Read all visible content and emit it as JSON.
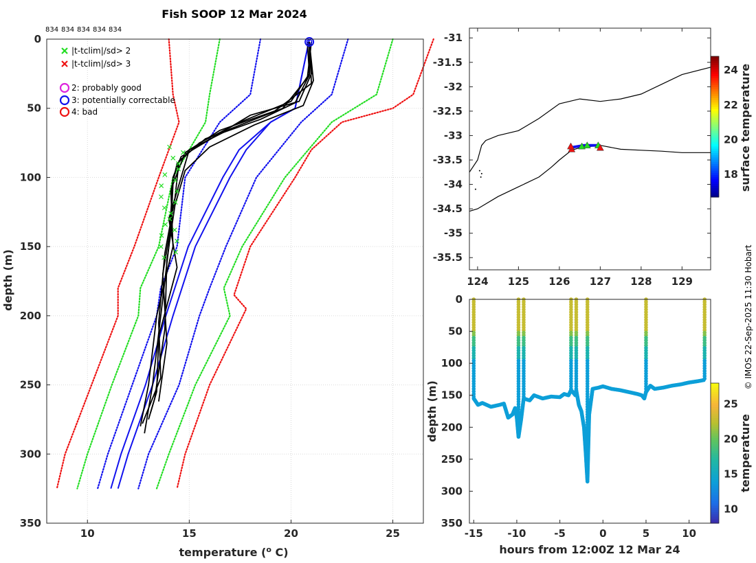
{
  "chart_data": [
    {
      "type": "line",
      "title": "Fish SOOP 12 Mar 2024",
      "xlabel": "temperature (",
      "xlabel_sup": "o",
      "xlabel_suffix": " C)",
      "ylabel": "depth (m)",
      "xlim": [
        8,
        26.5
      ],
      "ylim": [
        350,
        0
      ],
      "xticks": [
        "10",
        "15",
        "20",
        "25"
      ],
      "yticks": [
        "0",
        "50",
        "100",
        "150",
        "200",
        "250",
        "300",
        "350"
      ],
      "count_labels": [
        "834",
        "834",
        "834",
        "834",
        "834"
      ],
      "legend": [
        {
          "marker": "x",
          "color": "#22dd22",
          "label": "|t-tclim|/sd> 2"
        },
        {
          "marker": "x",
          "color": "#ee1111",
          "label": "|t-tclim|/sd> 3"
        },
        {
          "marker": "o",
          "color": "#dd22dd",
          "label": "2: probably good"
        },
        {
          "marker": "o",
          "color": "#1111ee",
          "label": "3: potentially correctable"
        },
        {
          "marker": "o",
          "color": "#ee1111",
          "label": "4: bad"
        }
      ],
      "climatology": [
        {
          "name": "clim-3sd-low",
          "color": "#ee1111",
          "depth": [
            0,
            40,
            60,
            100,
            150,
            180,
            200,
            250,
            300,
            325
          ],
          "temp": [
            14.0,
            14.2,
            14.5,
            13.5,
            12.3,
            11.5,
            11.5,
            10.2,
            8.9,
            8.5
          ]
        },
        {
          "name": "clim-2sd-low",
          "color": "#22dd22",
          "depth": [
            0,
            40,
            60,
            100,
            150,
            180,
            200,
            250,
            300,
            325
          ],
          "temp": [
            16.5,
            16.0,
            15.8,
            14.2,
            13.5,
            12.6,
            12.5,
            11.2,
            10.0,
            9.5
          ]
        },
        {
          "name": "clim-1sd-low",
          "color": "#1111ee",
          "depth": [
            0,
            40,
            60,
            100,
            150,
            180,
            200,
            250,
            300,
            325
          ],
          "temp": [
            18.5,
            18.0,
            16.5,
            14.8,
            14.4,
            13.6,
            13.4,
            12.2,
            11.0,
            10.5
          ]
        },
        {
          "name": "clim-1sd-high",
          "color": "#1111ee",
          "depth": [
            0,
            40,
            60,
            100,
            150,
            180,
            200,
            250,
            300,
            325
          ],
          "temp": [
            22.8,
            22.0,
            20.5,
            18.3,
            16.8,
            16.0,
            15.5,
            14.5,
            13.0,
            12.5
          ]
        },
        {
          "name": "clim-2sd-high",
          "color": "#22dd22",
          "depth": [
            0,
            40,
            60,
            100,
            150,
            180,
            200,
            250,
            300,
            325
          ],
          "temp": [
            25.0,
            24.2,
            22.0,
            19.7,
            17.6,
            16.7,
            17.0,
            15.3,
            14.0,
            13.4
          ]
        },
        {
          "name": "clim-3sd-high",
          "color": "#ee1111",
          "depth": [
            0,
            40,
            50,
            60,
            80,
            100,
            150,
            185,
            195,
            250,
            300,
            325
          ],
          "temp": [
            27.0,
            26.0,
            25.0,
            22.5,
            21.0,
            20.2,
            18.0,
            17.2,
            17.8,
            16.0,
            14.8,
            14.4
          ]
        }
      ],
      "mean_profile": {
        "name": "clim-mean",
        "color": "#1111ee",
        "depth": [
          0,
          50,
          60,
          80,
          100,
          150,
          200,
          250,
          300,
          325
        ],
        "temp": [
          20.9,
          20.2,
          19.0,
          17.8,
          17.0,
          15.3,
          14.2,
          13.2,
          12.0,
          11.5
        ]
      },
      "profiles": [
        {
          "color": "#000000",
          "depth": [
            2,
            25,
            45,
            55,
            70,
            85,
            100,
            150,
            200,
            250,
            285
          ],
          "temp": [
            20.9,
            21.0,
            20.4,
            18.0,
            16.3,
            14.6,
            14.2,
            14.0,
            13.6,
            13.2,
            12.8
          ]
        },
        {
          "color": "#000000",
          "depth": [
            2,
            25,
            45,
            60,
            75,
            90,
            110,
            150,
            200,
            250,
            280
          ],
          "temp": [
            20.8,
            20.9,
            20.0,
            17.5,
            15.5,
            14.4,
            14.1,
            14.2,
            13.4,
            13.0,
            12.6
          ]
        },
        {
          "color": "#000000",
          "depth": [
            2,
            30,
            48,
            62,
            78,
            95,
            120,
            160,
            210,
            260,
            275
          ],
          "temp": [
            20.9,
            21.1,
            20.6,
            18.2,
            16.0,
            14.8,
            14.3,
            13.9,
            13.8,
            13.3,
            13.0
          ]
        },
        {
          "color": "#000000",
          "depth": [
            2,
            28,
            50,
            65,
            80,
            100,
            130,
            165,
            215,
            255,
            270
          ],
          "temp": [
            21.0,
            20.8,
            19.6,
            17.0,
            15.0,
            14.6,
            14.0,
            14.4,
            13.5,
            13.4,
            13.1
          ]
        },
        {
          "color": "#000000",
          "depth": [
            2,
            32,
            52,
            66,
            82,
            105,
            135,
            170,
            220,
            262
          ],
          "temp": [
            20.9,
            21.0,
            19.2,
            16.5,
            14.8,
            14.2,
            14.1,
            13.7,
            13.9,
            13.5
          ]
        },
        {
          "color": "#000000",
          "depth": [
            2,
            26,
            46,
            58,
            72,
            88,
            115,
            155,
            205,
            245,
            278
          ],
          "temp": [
            20.9,
            20.9,
            20.2,
            18.5,
            15.8,
            14.5,
            14.3,
            13.8,
            13.5,
            13.6,
            12.7
          ]
        }
      ],
      "qc_marker": {
        "label": "3: potentially correctable",
        "temp": 20.9,
        "depth": 2
      }
    },
    {
      "type": "map",
      "xlim": [
        123.8,
        129.7
      ],
      "ylim": [
        -35.75,
        -30.8
      ],
      "xticks": [
        "124",
        "125",
        "126",
        "127",
        "128",
        "129"
      ],
      "yticks": [
        "-31",
        "-31.5",
        "-32",
        "-32.5",
        "-33",
        "-33.5",
        "-34",
        "-34.5",
        "-35",
        "-35.5"
      ],
      "colorbar_label": "surface temperature",
      "colorbar_ticks": [
        "18",
        "20",
        "22",
        "24"
      ],
      "colorbar_range": [
        16.7,
        24.8
      ],
      "coast_upper": {
        "lon": [
          123.8,
          124.0,
          124.1,
          124.2,
          124.5,
          125.0,
          125.5,
          126.0,
          126.5,
          127.0,
          127.5,
          128.0,
          128.5,
          129.0,
          129.7
        ],
        "lat": [
          -33.75,
          -33.5,
          -33.2,
          -33.1,
          -33.0,
          -32.9,
          -32.65,
          -32.35,
          -32.25,
          -32.3,
          -32.25,
          -32.15,
          -31.95,
          -31.75,
          -31.6
        ]
      },
      "coast_lower": {
        "lon": [
          123.8,
          124.0,
          124.5,
          125.0,
          125.5,
          125.8,
          126.0,
          126.3,
          126.5,
          127.0,
          127.5,
          128.0,
          128.5,
          129.0,
          129.7
        ],
        "lat": [
          -34.55,
          -34.5,
          -34.25,
          -34.05,
          -33.85,
          -33.65,
          -33.5,
          -33.3,
          -33.25,
          -33.2,
          -33.28,
          -33.3,
          -33.32,
          -33.35,
          -33.35
        ]
      },
      "track": {
        "lon": [
          126.25,
          126.6,
          127.0
        ],
        "lat": [
          -33.25,
          -33.2,
          -33.2
        ]
      },
      "station_markers": [
        {
          "lon": 126.3,
          "lat": -33.28,
          "color": "#ee1111"
        },
        {
          "lon": 126.55,
          "lat": -33.22,
          "color": "#22dd22"
        },
        {
          "lon": 126.68,
          "lat": -33.2,
          "color": "#22dd22"
        },
        {
          "lon": 126.95,
          "lat": -33.2,
          "color": "#22dd22"
        },
        {
          "lon": 127.0,
          "lat": -33.25,
          "color": "#ee1111"
        },
        {
          "lon": 126.28,
          "lat": -33.22,
          "color": "#ee1111"
        }
      ]
    },
    {
      "type": "scatter",
      "xlabel": "hours from 12:00Z 12 Mar 24",
      "ylabel": "depth (m)",
      "xlim": [
        -15.5,
        12.5
      ],
      "ylim": [
        350,
        0
      ],
      "xticks": [
        "-15",
        "-10",
        "-5",
        "0",
        "5",
        "10"
      ],
      "yticks": [
        "0",
        "50",
        "100",
        "150",
        "200",
        "250",
        "300",
        "350"
      ],
      "colorbar_label": "temperature",
      "colorbar_ticks": [
        "10",
        "15",
        "20",
        "25"
      ],
      "colorbar_range": [
        8,
        28
      ],
      "drops": [
        -15.0,
        -9.8,
        -9.2,
        -3.7,
        -3.1,
        -1.8,
        5.0,
        11.8
      ],
      "bottom_trace": {
        "hours": [
          -15.0,
          -14.5,
          -14.0,
          -13.0,
          -12.0,
          -11.5,
          -11.0,
          -10.5,
          -10.2,
          -10.0,
          -9.8,
          -9.5,
          -9.2,
          -8.5,
          -8.0,
          -7.0,
          -6.0,
          -5.0,
          -4.5,
          -4.0,
          -3.7,
          -3.5,
          -3.2,
          -3.1,
          -2.8,
          -2.5,
          -2.2,
          -2.0,
          -1.8,
          -1.6,
          -1.2,
          -0.5,
          0.0,
          1.0,
          2.0,
          3.0,
          4.0,
          4.5,
          4.8,
          5.0,
          5.5,
          6.0,
          7.0,
          8.0,
          9.0,
          10.0,
          11.0,
          11.8
        ],
        "depth": [
          155,
          165,
          162,
          168,
          165,
          163,
          185,
          180,
          170,
          185,
          215,
          188,
          155,
          158,
          150,
          155,
          152,
          153,
          148,
          150,
          142,
          145,
          150,
          142,
          165,
          175,
          200,
          240,
          285,
          180,
          140,
          138,
          136,
          140,
          142,
          145,
          148,
          150,
          155,
          145,
          135,
          140,
          138,
          135,
          133,
          130,
          128,
          126
        ]
      }
    }
  ],
  "side_text": "© IMOS 22-Sep-2025 11:30 Hobart"
}
